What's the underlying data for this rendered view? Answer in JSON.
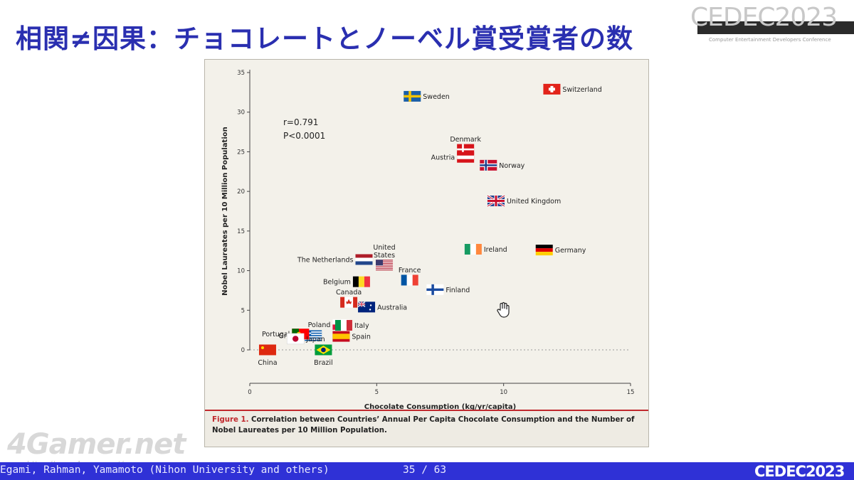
{
  "slide": {
    "title": "相関≠因果：チョコレートとノーベル賞受賞者の数",
    "footer_authors": "Egami, Rahman, Yamamoto (Nihon University and others)",
    "page_number": "35 / 63",
    "logo_text": "CEDEC2023",
    "logo_tagline": "Computer Entertainment Developers Conference",
    "footer_logo": "CEDEC2023",
    "watermark": "4Gamer.net",
    "watermark_url": "https://www.4gamer.net/"
  },
  "colors": {
    "title": "#2a2fb0",
    "footer_bar": "#2f31d6",
    "caption_accent": "#c0282d",
    "figure_bg": "#f3f1ea"
  },
  "figure": {
    "caption_label": "Figure 1.",
    "caption_text": "Correlation between Countries’ Annual Per Capita Chocolate Consumption and the Number of Nobel Laureates per 10 Million Population."
  },
  "chart_data": {
    "type": "scatter",
    "xlabel": "Chocolate Consumption (kg/yr/capita)",
    "ylabel": "Nobel Laureates per 10 Million Population",
    "xlim": [
      0,
      15
    ],
    "ylim": [
      0,
      35
    ],
    "xticks": [
      0,
      5,
      10,
      15
    ],
    "yticks": [
      0,
      5,
      10,
      15,
      20,
      25,
      30,
      35
    ],
    "grid": false,
    "baseline_y": 0,
    "annotations": [
      "r=0.791",
      "P<0.0001"
    ],
    "points": [
      {
        "name": "Switzerland",
        "x": 11.9,
        "y": 32.9,
        "flag": "switzerland"
      },
      {
        "name": "Sweden",
        "x": 6.4,
        "y": 32.0,
        "flag": "sweden"
      },
      {
        "name": "Denmark",
        "x": 8.5,
        "y": 25.3,
        "flag": "denmark"
      },
      {
        "name": "Austria",
        "x": 8.5,
        "y": 24.3,
        "flag": "austria"
      },
      {
        "name": "Norway",
        "x": 9.4,
        "y": 23.3,
        "flag": "norway"
      },
      {
        "name": "United Kingdom",
        "x": 9.7,
        "y": 18.8,
        "flag": "uk"
      },
      {
        "name": "Ireland",
        "x": 8.8,
        "y": 12.7,
        "flag": "ireland"
      },
      {
        "name": "Germany",
        "x": 11.6,
        "y": 12.6,
        "flag": "germany"
      },
      {
        "name": "The Netherlands",
        "x": 4.5,
        "y": 11.4,
        "flag": "netherlands"
      },
      {
        "name": "United States",
        "x": 5.3,
        "y": 10.7,
        "flag": "usa"
      },
      {
        "name": "France",
        "x": 6.3,
        "y": 8.8,
        "flag": "france"
      },
      {
        "name": "Finland",
        "x": 7.3,
        "y": 7.6,
        "flag": "finland"
      },
      {
        "name": "Belgium",
        "x": 4.4,
        "y": 8.6,
        "flag": "belgium"
      },
      {
        "name": "Canada",
        "x": 3.9,
        "y": 6.0,
        "flag": "canada"
      },
      {
        "name": "Australia",
        "x": 4.6,
        "y": 5.4,
        "flag": "australia"
      },
      {
        "name": "Poland",
        "x": 3.6,
        "y": 3.2,
        "flag": "poland"
      },
      {
        "name": "Greece",
        "x": 2.5,
        "y": 1.8,
        "flag": "greece"
      },
      {
        "name": "Italy",
        "x": 3.7,
        "y": 3.1,
        "flag": "italy"
      },
      {
        "name": "Spain",
        "x": 3.6,
        "y": 1.7,
        "flag": "spain"
      },
      {
        "name": "Portugal",
        "x": 2.0,
        "y": 2.0,
        "flag": "portugal"
      },
      {
        "name": "Japan",
        "x": 1.8,
        "y": 1.4,
        "flag": "japan"
      },
      {
        "name": "Brazil",
        "x": 2.9,
        "y": 0.0,
        "flag": "brazil"
      },
      {
        "name": "China",
        "x": 0.7,
        "y": 0.0,
        "flag": "china"
      }
    ]
  }
}
